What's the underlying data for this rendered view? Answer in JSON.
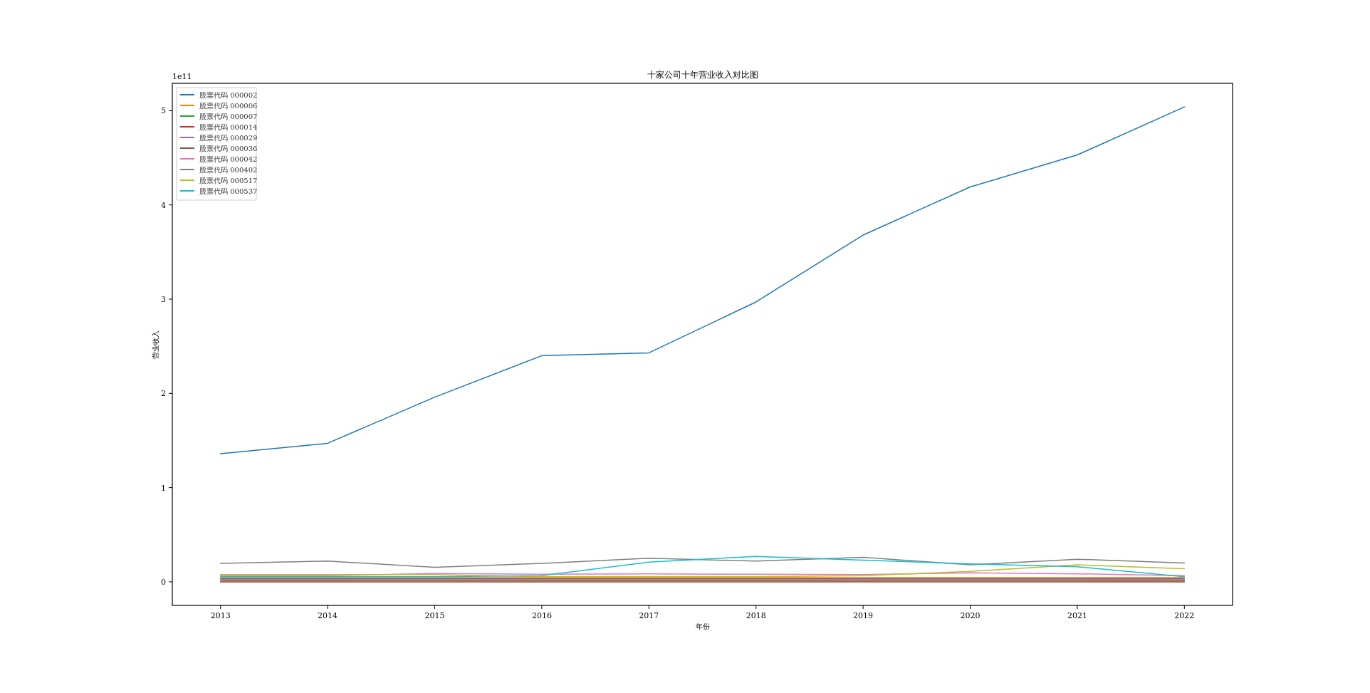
{
  "chart_data": {
    "type": "line",
    "title": "十家公司十年营业收入对比图",
    "xlabel": "年份",
    "ylabel": "营业收入",
    "annotations": [
      "1e11"
    ],
    "x": [
      2013,
      2014,
      2015,
      2016,
      2017,
      2018,
      2019,
      2020,
      2021,
      2022
    ],
    "xlim": [
      2012.55,
      2022.45
    ],
    "xticks": [
      2013,
      2014,
      2015,
      2016,
      2017,
      2018,
      2019,
      2020,
      2021,
      2022
    ],
    "ylim": [
      -0.25,
      5.29
    ],
    "yticks": [
      0,
      1,
      2,
      3,
      4,
      5
    ],
    "grid": false,
    "legend": "top left",
    "marker": "none",
    "line_style": "solid",
    "series": [
      {
        "name": "股票代码 000002",
        "color": "#1f77b4",
        "values": [
          1.36,
          1.47,
          1.96,
          2.4,
          2.43,
          2.97,
          3.68,
          4.19,
          4.53,
          5.04
        ]
      },
      {
        "name": "股票代码 000006",
        "color": "#ff7f0e",
        "values": [
          0.044,
          0.044,
          0.044,
          0.044,
          0.044,
          0.044,
          0.044,
          0.044,
          0.044,
          0.044
        ]
      },
      {
        "name": "股票代码 000007",
        "color": "#2ca02c",
        "values": [
          0.011,
          0.011,
          0.011,
          0.011,
          0.011,
          0.011,
          0.011,
          0.011,
          0.011,
          0.011
        ]
      },
      {
        "name": "股票代码 000014",
        "color": "#d62728",
        "values": [
          0,
          0,
          0,
          0,
          0,
          0,
          0,
          0,
          0,
          0
        ]
      },
      {
        "name": "股票代码 000029",
        "color": "#9467bd",
        "values": [
          0.022,
          0.022,
          0.022,
          0.022,
          0.022,
          0.022,
          0.022,
          0.022,
          0.022,
          0.022
        ]
      },
      {
        "name": "股票代码 000036",
        "color": "#8c564b",
        "values": [
          0.033,
          0.033,
          0.033,
          0.033,
          0.033,
          0.033,
          0.033,
          0.033,
          0.033,
          0.033
        ]
      },
      {
        "name": "股票代码 000042",
        "color": "#e377c2",
        "values": [
          0.066,
          0.066,
          0.088,
          0.08,
          0.085,
          0.08,
          0.077,
          0.095,
          0.085,
          0.066
        ]
      },
      {
        "name": "股票代码 000402",
        "color": "#7f7f7f",
        "values": [
          0.196,
          0.22,
          0.154,
          0.196,
          0.25,
          0.22,
          0.26,
          0.18,
          0.24,
          0.2
        ]
      },
      {
        "name": "股票代码 000517",
        "color": "#bcbd22",
        "values": [
          0.077,
          0.077,
          0.077,
          0.055,
          0.055,
          0.055,
          0.066,
          0.11,
          0.18,
          0.14
        ]
      },
      {
        "name": "股票代码 000537",
        "color": "#17becf",
        "values": [
          0.055,
          0.055,
          0.055,
          0.066,
          0.21,
          0.27,
          0.23,
          0.19,
          0.16,
          0.055
        ]
      }
    ]
  }
}
